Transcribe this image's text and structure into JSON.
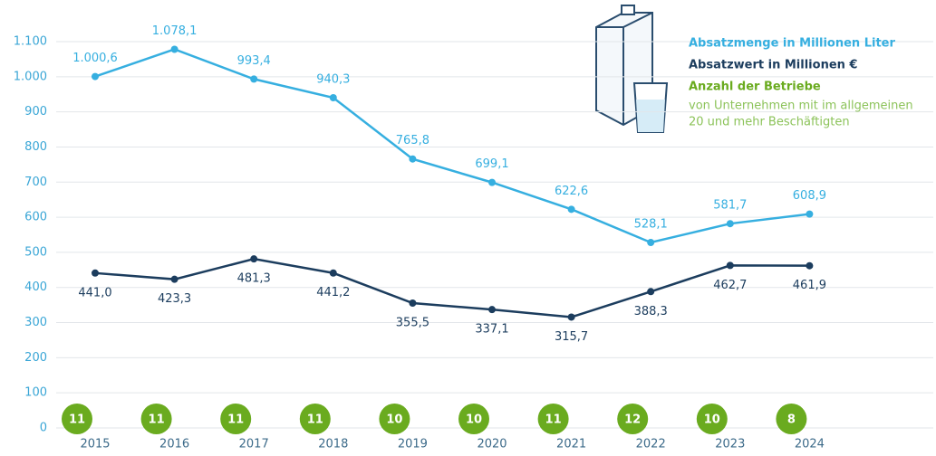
{
  "chart_data": {
    "type": "line",
    "categories": [
      "2015",
      "2016",
      "2017",
      "2018",
      "2019",
      "2020",
      "2021",
      "2022",
      "2023",
      "2024"
    ],
    "series": [
      {
        "name": "Absatzmenge in Millionen Liter",
        "color": "#36afe0",
        "values": [
          1000.6,
          1078.1,
          993.4,
          940.3,
          765.8,
          699.1,
          622.6,
          528.1,
          581.7,
          608.9
        ],
        "value_labels": [
          "1.000,6",
          "1.078,1",
          "993,4",
          "940,3",
          "765,8",
          "699,1",
          "622,6",
          "528,1",
          "581,7",
          "608,9"
        ]
      },
      {
        "name": "Absatzwert in Millionen €",
        "color": "#1c3d5e",
        "values": [
          441.0,
          423.3,
          481.3,
          441.2,
          355.5,
          337.1,
          315.7,
          388.3,
          462.7,
          461.9
        ],
        "value_labels": [
          "441,0",
          "423,3",
          "481,3",
          "441,2",
          "355,5",
          "337,1",
          "315,7",
          "388,3",
          "462,7",
          "461,9"
        ]
      }
    ],
    "counts": {
      "name": "Anzahl der Betriebe",
      "note": [
        "von Unternehmen mit im allgemeinen",
        "20 und mehr Beschäftigten"
      ],
      "color": "#6aab1f",
      "values": [
        11,
        11,
        11,
        11,
        10,
        10,
        11,
        12,
        10,
        8
      ]
    },
    "ylim": [
      0,
      1100
    ],
    "yticks": [
      0,
      100,
      200,
      300,
      400,
      500,
      600,
      700,
      800,
      900,
      {
        "value": 1000,
        "label": "1.000"
      },
      {
        "value": 1100,
        "label": "1.100"
      }
    ],
    "grid": true
  }
}
